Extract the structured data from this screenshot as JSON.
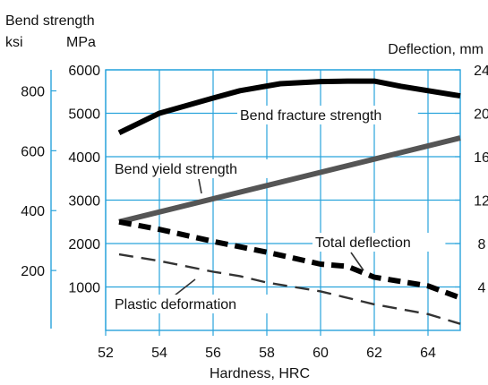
{
  "chart_data": {
    "type": "line",
    "title": "",
    "xlabel": "Hardness, HRC",
    "x_ticks": [
      "52",
      "54",
      "56",
      "58",
      "60",
      "62",
      "64"
    ],
    "xlim": [
      52,
      65.2
    ],
    "y_left_title": "Bend strength",
    "y_left_outer_unit": "ksi",
    "y_left_inner_unit": "MPa",
    "y_left_ksi_ticks": [
      "800",
      "600",
      "400",
      "200"
    ],
    "y_left_mpa_ticks": [
      "6000",
      "5000",
      "4000",
      "3000",
      "2000",
      "1000"
    ],
    "y_left_mpa_lim": [
      0,
      6000
    ],
    "y_right_label": "Deflection, mm",
    "y_right_ticks": [
      "24",
      "20",
      "16",
      "12",
      "8",
      "4"
    ],
    "y_right_lim": [
      0,
      24
    ],
    "grid": true,
    "colors": {
      "grid": "#29a3dc",
      "axis": "#29a3dc",
      "curve_black": "#000000",
      "curve_gray": "#555555",
      "curve_dashed": "#333333"
    },
    "series": [
      {
        "name": "Bend fracture strength",
        "axis": "left_mpa",
        "style": "solid-thick-black",
        "x": [
          52.5,
          54,
          56,
          57,
          58.5,
          60,
          61,
          62,
          63,
          65.2
        ],
        "y": [
          4550,
          5000,
          5350,
          5520,
          5680,
          5730,
          5740,
          5740,
          5620,
          5400
        ]
      },
      {
        "name": "Bend yield strength",
        "axis": "left_mpa",
        "style": "solid-thick-gray",
        "x": [
          52.5,
          65.2
        ],
        "y": [
          2500,
          4430
        ]
      },
      {
        "name": "Total deflection",
        "axis": "right_mm",
        "style": "dashed-thick-black",
        "x": [
          52.5,
          54,
          56,
          58,
          60,
          61,
          62,
          64,
          65.2
        ],
        "y": [
          10,
          9.3,
          8.2,
          7.2,
          6.1,
          5.9,
          4.9,
          4.1,
          3
        ],
        "data_labels": []
      },
      {
        "name": "Plastic deformation",
        "axis": "right_mm",
        "style": "dashed-thin-gray",
        "x": [
          52.5,
          54,
          56,
          57,
          58,
          60,
          62,
          64,
          65.2
        ],
        "y": [
          7,
          6.4,
          5.4,
          5,
          4.4,
          3.6,
          2.4,
          1.5,
          0.6
        ]
      }
    ],
    "annotations": [
      {
        "text": "Bend fracture strength",
        "series": "Bend fracture strength"
      },
      {
        "text": "Bend yield strength",
        "series": "Bend yield strength"
      },
      {
        "text": "Total deflection",
        "series": "Total deflection"
      },
      {
        "text": "Plastic deformation",
        "series": "Plastic deformation"
      }
    ]
  }
}
